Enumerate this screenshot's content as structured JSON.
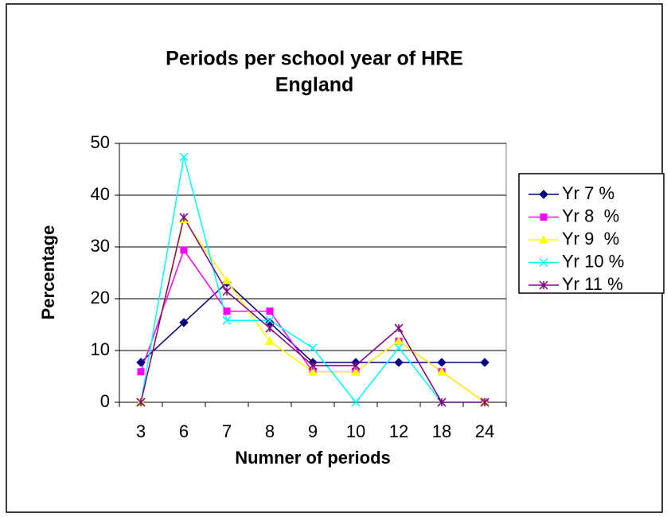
{
  "chart_data": {
    "type": "line",
    "title": [
      "Periods per school year of HRE",
      "England"
    ],
    "x_label": "Numner of periods",
    "y_label": "Percentage",
    "categories": [
      "3",
      "6",
      "7",
      "8",
      "9",
      "10",
      "12",
      "18",
      "24"
    ],
    "series": [
      {
        "name": "Yr 7 %",
        "color": "#000080",
        "marker": "diamond",
        "values": [
          7.7,
          15.4,
          23.1,
          15.4,
          7.7,
          7.7,
          7.7,
          7.7,
          7.7
        ]
      },
      {
        "name": "Yr 8  %",
        "color": "#ff00ff",
        "marker": "square",
        "values": [
          5.9,
          29.4,
          17.6,
          17.6,
          5.9,
          5.9,
          11.8,
          5.9,
          0
        ]
      },
      {
        "name": "Yr 9  %",
        "color": "#ffff00",
        "marker": "triangle",
        "values": [
          0,
          35.3,
          23.5,
          11.8,
          5.9,
          5.9,
          11.8,
          5.9,
          0
        ]
      },
      {
        "name": "Yr 10 %",
        "color": "#00ffff",
        "marker": "x",
        "values": [
          0,
          47.4,
          15.8,
          15.8,
          10.5,
          0,
          10.5,
          0,
          0
        ]
      },
      {
        "name": "Yr 11 %",
        "color": "#800080",
        "marker": "star",
        "values": [
          0,
          35.7,
          21.4,
          14.3,
          7.1,
          7.1,
          14.3,
          0,
          0
        ]
      }
    ],
    "ylim": [
      0,
      50
    ],
    "yticks": [
      0,
      10,
      20,
      30,
      40,
      50
    ],
    "grid": true,
    "legend": "right"
  }
}
